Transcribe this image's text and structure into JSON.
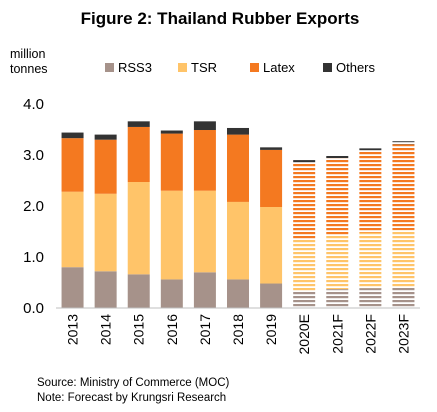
{
  "chart_data": {
    "type": "bar",
    "stacked": true,
    "title": "Figure 2: Thailand Rubber Exports",
    "ylabel_lines": [
      "million",
      "tonnes"
    ],
    "ylim": [
      0,
      4
    ],
    "yticks": [
      "0.0",
      "1.0",
      "2.0",
      "3.0",
      "4.0"
    ],
    "grid": false,
    "legend_position": "top",
    "categories": [
      "2013",
      "2014",
      "2015",
      "2016",
      "2017",
      "2018",
      "2019",
      "2020E",
      "2021F",
      "2022F",
      "2023F"
    ],
    "forecast_from_index": 7,
    "series": [
      {
        "name": "RSS3",
        "color": "#a6928a",
        "values": [
          0.8,
          0.72,
          0.66,
          0.56,
          0.7,
          0.56,
          0.48,
          0.34,
          0.37,
          0.39,
          0.42
        ]
      },
      {
        "name": "TSR",
        "color": "#ffc469",
        "values": [
          1.48,
          1.52,
          1.81,
          1.74,
          1.6,
          1.52,
          1.5,
          1.02,
          1.05,
          1.09,
          1.11
        ]
      },
      {
        "name": "Latex",
        "color": "#f47920",
        "values": [
          1.05,
          1.06,
          1.08,
          1.12,
          1.19,
          1.32,
          1.12,
          1.48,
          1.52,
          1.59,
          1.68
        ]
      },
      {
        "name": "Others",
        "color": "#333333",
        "values": [
          0.11,
          0.1,
          0.11,
          0.06,
          0.17,
          0.13,
          0.05,
          0.06,
          0.06,
          0.06,
          0.06
        ]
      }
    ]
  },
  "footer": {
    "source": "Source:  Ministry of Commerce (MOC)",
    "note": "Note: Forecast by Krungsri Research"
  }
}
